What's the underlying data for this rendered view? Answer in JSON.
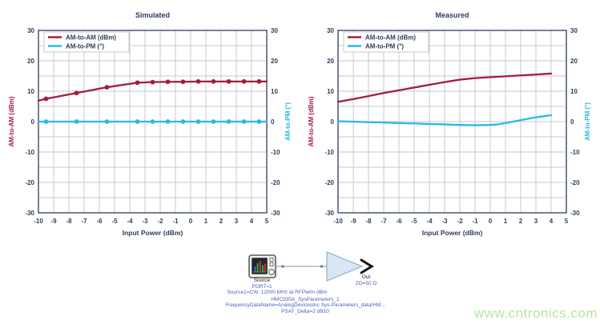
{
  "colors": {
    "am_to_am": "#a61c3c",
    "am_to_pm": "#2ab8e8",
    "axis_text": "#2e3d5c",
    "grid": "#c5cad3",
    "border": "#3d4a66",
    "schematic_blue": "#4a5ec4",
    "amp_fill": "#d9e7f4",
    "amp_stroke": "#90adc9",
    "watermark_green": "#b7e5a6"
  },
  "chart_data": [
    {
      "type": "line",
      "title": "Simulated",
      "xlabel": "Input Power (dBm)",
      "ylabel_left": "AM-to-AM (dBm)",
      "ylabel_right": "AM-to-PM (°)",
      "xlim": [
        -10,
        5
      ],
      "ylim": [
        -30,
        30
      ],
      "x_tick_step": 1,
      "y_grid_step": 5,
      "y_label_step": 10,
      "grid": true,
      "legend_position": "top-left",
      "series": [
        {
          "name": "AM-to-AM (dBm)",
          "color": "#a61c3c",
          "points": [
            [
              -10,
              6.9
            ],
            [
              -9.5,
              7.5
            ],
            [
              -7.5,
              9.4
            ],
            [
              -5.5,
              11.3
            ],
            [
              -3.5,
              12.8
            ],
            [
              -2.5,
              13.0
            ],
            [
              -1.5,
              13.1
            ],
            [
              -0.5,
              13.1
            ],
            [
              0.5,
              13.2
            ],
            [
              1.5,
              13.2
            ],
            [
              2.5,
              13.2
            ],
            [
              3.5,
              13.2
            ],
            [
              4.5,
              13.2
            ],
            [
              5,
              13.2
            ]
          ],
          "markers": [
            [
              -9.5,
              7.5
            ],
            [
              -7.5,
              9.4
            ],
            [
              -5.5,
              11.3
            ],
            [
              -3.5,
              12.8
            ],
            [
              -2.5,
              13.0
            ],
            [
              -1.5,
              13.1
            ],
            [
              -0.5,
              13.1
            ],
            [
              0.5,
              13.2
            ],
            [
              1.5,
              13.2
            ],
            [
              2.5,
              13.2
            ],
            [
              3.5,
              13.2
            ],
            [
              4.5,
              13.2
            ]
          ]
        },
        {
          "name": "AM-to-PM (°)",
          "color": "#2ab8e8",
          "points": [
            [
              -10,
              0
            ],
            [
              5,
              0
            ]
          ],
          "markers": [
            [
              -9.5,
              0
            ],
            [
              -7.5,
              0
            ],
            [
              -5.5,
              0
            ],
            [
              -3.5,
              0
            ],
            [
              -2.5,
              0
            ],
            [
              -1.5,
              0
            ],
            [
              -0.5,
              0
            ],
            [
              0.5,
              0
            ],
            [
              1.5,
              0
            ],
            [
              2.5,
              0
            ],
            [
              3.5,
              0
            ],
            [
              4.5,
              0
            ]
          ]
        }
      ]
    },
    {
      "type": "line",
      "title": "Measured",
      "xlabel": "Input Power (dBm)",
      "ylabel_left": "AM-to-AM (dBm)",
      "ylabel_right": "AM-to-PM (°)",
      "xlim": [
        -10,
        5
      ],
      "ylim": [
        -30,
        30
      ],
      "x_tick_step": 1,
      "y_grid_step": 5,
      "y_label_step": 10,
      "grid": true,
      "legend_position": "top-left",
      "series": [
        {
          "name": "AM-to-AM (dBm)",
          "color": "#a61c3c",
          "points": [
            [
              -10,
              6.5
            ],
            [
              -9,
              7.4
            ],
            [
              -8,
              8.4
            ],
            [
              -7,
              9.4
            ],
            [
              -6,
              10.3
            ],
            [
              -5,
              11.2
            ],
            [
              -4,
              12.1
            ],
            [
              -3,
              13.0
            ],
            [
              -2,
              13.8
            ],
            [
              -1,
              14.3
            ],
            [
              0,
              14.6
            ],
            [
              1,
              14.9
            ],
            [
              2,
              15.2
            ],
            [
              3,
              15.5
            ],
            [
              4,
              15.8
            ]
          ],
          "markers": []
        },
        {
          "name": "AM-to-PM (°)",
          "color": "#2ab8e8",
          "points": [
            [
              -10,
              0.1
            ],
            [
              -9,
              0
            ],
            [
              -8,
              -0.2
            ],
            [
              -7,
              -0.3
            ],
            [
              -6,
              -0.5
            ],
            [
              -5,
              -0.6
            ],
            [
              -4,
              -0.8
            ],
            [
              -3,
              -0.9
            ],
            [
              -2,
              -1.1
            ],
            [
              -1,
              -1.2
            ],
            [
              0,
              -1.1
            ],
            [
              0.5,
              -0.9
            ],
            [
              1,
              -0.5
            ],
            [
              2,
              0.5
            ],
            [
              3,
              1.4
            ],
            [
              4,
              2.1
            ]
          ],
          "markers": []
        }
      ]
    }
  ],
  "schematic": {
    "source": {
      "label": "Source",
      "port": "PORT=1",
      "stimulus": "Source1=CW: 12000 MHz at RFPwrIn dBm"
    },
    "amplifier": {
      "line1": "HMC930A_SysParameters_1",
      "line2": "FrequencyDataName=AnalogDevicesInc Sys-Parameters_data/HM...",
      "line3": "PSAT_Delta=2 dB10"
    },
    "output": {
      "label": "Out",
      "impedance": "ZO=50 Ω"
    }
  },
  "watermark": {
    "text": "www.cntronics.com"
  }
}
